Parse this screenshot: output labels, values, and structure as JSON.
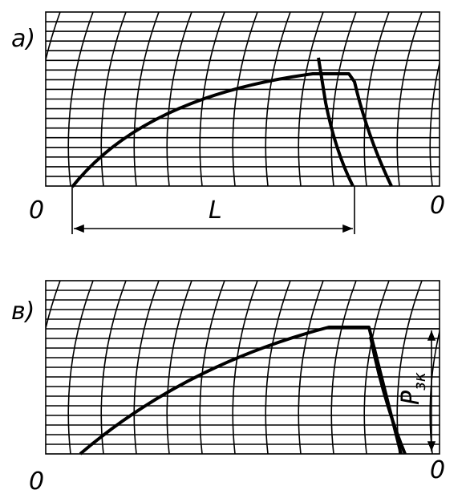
{
  "panels": [
    {
      "label": "а)",
      "origin_left": "0",
      "origin_right": "0",
      "dimension": "L"
    },
    {
      "label": "в)",
      "origin_left": "0",
      "origin_right": "0",
      "dimension": "P",
      "dimension_subscript": "зк"
    }
  ]
}
